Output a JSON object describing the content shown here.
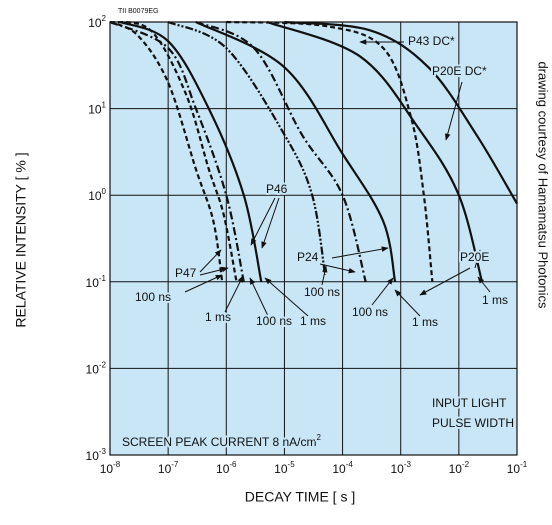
{
  "chart_data": {
    "type": "line",
    "code": "TII B0079EG",
    "xlabel": "DECAY TIME [ s ]",
    "ylabel": "RELATIVE INTENSITY [ % ]",
    "credit": "drawing courtesy of Hamamatsu Photonics",
    "xscale": "log",
    "yscale": "log",
    "grid": true,
    "background": "#c9e6f6",
    "xlim": [
      1e-08,
      0.1
    ],
    "ylim": [
      0.001,
      100
    ],
    "xticks": [
      {
        "value": 1e-08,
        "label": "10",
        "sup": "-8"
      },
      {
        "value": 1e-07,
        "label": "10",
        "sup": "-7"
      },
      {
        "value": 1e-06,
        "label": "10",
        "sup": "-6"
      },
      {
        "value": 1e-05,
        "label": "10",
        "sup": "-5"
      },
      {
        "value": 0.0001,
        "label": "10",
        "sup": "-4"
      },
      {
        "value": 0.001,
        "label": "10",
        "sup": "-3"
      },
      {
        "value": 0.01,
        "label": "10",
        "sup": "-2"
      },
      {
        "value": 0.1,
        "label": "10",
        "sup": "-1"
      }
    ],
    "yticks": [
      {
        "value": 0.001,
        "label": "10",
        "sup": "-3"
      },
      {
        "value": 0.01,
        "label": "10",
        "sup": "-2"
      },
      {
        "value": 0.1,
        "label": "10",
        "sup": "-1"
      },
      {
        "value": 1,
        "label": "10",
        "sup": "0"
      },
      {
        "value": 10,
        "label": "10",
        "sup": "1"
      },
      {
        "value": 100,
        "label": "10",
        "sup": "2"
      }
    ],
    "series": [
      {
        "color": "#111",
        "dash": "5,3",
        "x": [
          1e-08,
          3e-08,
          1e-07,
          3e-07,
          6e-07,
          8.5e-07
        ],
        "values": [
          100,
          70,
          20,
          2,
          0.5,
          0.1
        ]
      },
      {
        "color": "#111",
        "dash": "5,3",
        "x": [
          1e-08,
          5e-08,
          2e-07,
          5e-07,
          9e-07,
          1.5e-06
        ],
        "values": [
          100,
          80,
          15,
          2,
          0.6,
          0.1
        ]
      },
      {
        "color": "#111",
        "dash": "8,3,2,3",
        "x": [
          1e-08,
          1e-07,
          3e-07,
          1e-06,
          2e-06
        ],
        "values": [
          100,
          50,
          10,
          1,
          0.1
        ]
      },
      {
        "color": "#111",
        "dash": "",
        "x": [
          1.5e-08,
          1e-07,
          5e-07,
          2e-06,
          4e-06
        ],
        "values": [
          100,
          60,
          10,
          1,
          0.1
        ]
      },
      {
        "color": "#111",
        "dash": "8,2,2,2,2,2",
        "x": [
          1e-07,
          1e-06,
          1e-05,
          3e-05,
          5e-05
        ],
        "values": [
          100,
          50,
          5,
          1,
          0.12
        ]
      },
      {
        "color": "#111",
        "dash": "8,3,2,3",
        "x": [
          3e-07,
          3e-06,
          2e-05,
          0.0001,
          0.00025
        ],
        "values": [
          100,
          50,
          5,
          1,
          0.1
        ]
      },
      {
        "color": "#111",
        "dash": "",
        "x": [
          3e-07,
          1e-05,
          0.0001,
          0.0005,
          0.0008
        ],
        "values": [
          100,
          30,
          3,
          0.5,
          0.1
        ]
      },
      {
        "color": "#111",
        "dash": "",
        "x": [
          5e-06,
          0.0002,
          0.002,
          0.01,
          0.025
        ],
        "values": [
          100,
          40,
          6,
          1,
          0.1
        ]
      },
      {
        "color": "#111",
        "dash": "5,3",
        "x": [
          1e-06,
          5e-05,
          0.0005,
          0.0015,
          0.0025,
          0.0035
        ],
        "values": [
          100,
          90,
          50,
          8,
          1,
          0.1
        ]
      },
      {
        "color": "#111",
        "dash": "",
        "x": [
          1e-05,
          0.0003,
          0.003,
          0.02,
          0.1
        ],
        "values": [
          100,
          80,
          30,
          5,
          0.8
        ]
      }
    ],
    "annotations": [
      "P43 DC*",
      "P20E DC*",
      "P46",
      "P24",
      "P20E",
      "P47",
      "100 ns",
      "1 ms",
      "100 ns",
      "1 ms",
      "100 ns",
      "100 ns",
      "1 ms",
      "1 ms",
      "INPUT LIGHT",
      "PULSE WIDTH"
    ],
    "note": {
      "text": "SCREEN PEAK CURRENT 8 nA/cm",
      "sup": "2"
    }
  }
}
